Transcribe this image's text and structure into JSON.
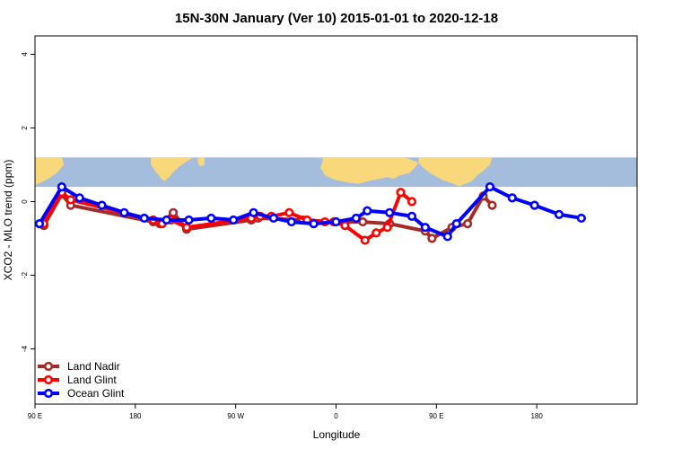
{
  "chart_data": {
    "type": "line",
    "title": "15N-30N January (Ver 10)   2015-01-01 to 2020-12-18",
    "xlabel": "Longitude",
    "ylabel": "XCO2 - MLO trend (ppm)",
    "xlim": [
      -90,
      180
    ],
    "ylim": [
      -5.5,
      4.5
    ],
    "x_ticks": [
      {
        "value": -90,
        "label": "90 E"
      },
      {
        "value": -45,
        "label": "180"
      },
      {
        "value": 0,
        "label": "90 W"
      },
      {
        "value": 45,
        "label": "0"
      },
      {
        "value": 90,
        "label": "90 E"
      },
      {
        "value": 135,
        "label": "180"
      }
    ],
    "y_ticks": [
      {
        "value": -4,
        "label": "-4"
      },
      {
        "value": -2,
        "label": "-2"
      },
      {
        "value": 0,
        "label": "0"
      },
      {
        "value": 2,
        "label": "2"
      },
      {
        "value": 4,
        "label": "4"
      }
    ],
    "map_band": {
      "ymin": 0.4,
      "ymax": 1.2,
      "ocean_color": "#a5bddd",
      "land_color": "#f9d87c"
    },
    "legend_position": "bottom-left",
    "series": [
      {
        "name": "Land Nadir",
        "color": "#a52a2a",
        "points": [
          [
            -86,
            -0.65
          ],
          [
            -78,
            0.2
          ],
          [
            -74,
            -0.1
          ],
          [
            -37,
            -0.55
          ],
          [
            -34,
            -0.6
          ],
          [
            -29,
            -0.45
          ],
          [
            -28,
            -0.3
          ],
          [
            -22,
            -0.75
          ],
          [
            7,
            -0.5
          ],
          [
            10,
            -0.45
          ],
          [
            30,
            -0.5
          ],
          [
            45,
            -0.55
          ],
          [
            57,
            -0.55
          ],
          [
            69,
            -0.6
          ],
          [
            85,
            -0.8
          ],
          [
            88,
            -1.0
          ],
          [
            97,
            -0.7
          ],
          [
            104,
            -0.6
          ],
          [
            111,
            0.15
          ],
          [
            115,
            -0.1
          ]
        ]
      },
      {
        "name": "Land Glint",
        "color": "#ff0000",
        "points": [
          [
            -86,
            -0.6
          ],
          [
            -78,
            0.25
          ],
          [
            -74,
            0.05
          ],
          [
            -37,
            -0.5
          ],
          [
            -33,
            -0.6
          ],
          [
            -29,
            -0.5
          ],
          [
            -22,
            -0.7
          ],
          [
            7,
            -0.45
          ],
          [
            11,
            -0.4
          ],
          [
            16,
            -0.4
          ],
          [
            24,
            -0.3
          ],
          [
            32,
            -0.5
          ],
          [
            40,
            -0.55
          ],
          [
            44,
            -0.55
          ],
          [
            49,
            -0.65
          ],
          [
            58,
            -1.05
          ],
          [
            63,
            -0.85
          ],
          [
            68,
            -0.7
          ],
          [
            74,
            0.25
          ],
          [
            79,
            0.0
          ]
        ]
      },
      {
        "name": "Ocean Glint",
        "color": "#0000ff",
        "points": [
          [
            -88,
            -0.6
          ],
          [
            -78,
            0.4
          ],
          [
            -70,
            0.1
          ],
          [
            -60,
            -0.1
          ],
          [
            -50,
            -0.3
          ],
          [
            -41,
            -0.45
          ],
          [
            -31,
            -0.5
          ],
          [
            -21,
            -0.5
          ],
          [
            -11,
            -0.45
          ],
          [
            -1,
            -0.5
          ],
          [
            8,
            -0.3
          ],
          [
            17,
            -0.45
          ],
          [
            25,
            -0.55
          ],
          [
            35,
            -0.6
          ],
          [
            45,
            -0.55
          ],
          [
            54,
            -0.45
          ],
          [
            59,
            -0.25
          ],
          [
            69,
            -0.3
          ],
          [
            79,
            -0.4
          ],
          [
            85,
            -0.7
          ],
          [
            95,
            -0.95
          ],
          [
            99,
            -0.6
          ],
          [
            114,
            0.4
          ],
          [
            124,
            0.1
          ],
          [
            134,
            -0.1
          ],
          [
            145,
            -0.35
          ],
          [
            155,
            -0.45
          ]
        ]
      }
    ]
  }
}
